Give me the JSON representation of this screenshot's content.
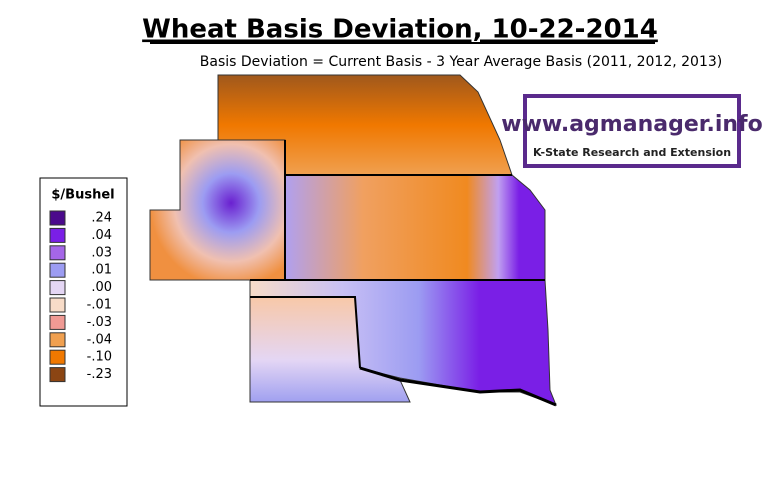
{
  "title": "Wheat Basis Deviation, 10-22-2014",
  "subtitle": "Basis Deviation = Current Basis - 3 Year Average Basis (2011, 2012, 2013)",
  "legend": {
    "title": "$/Bushel",
    "items": [
      {
        "label": ".24",
        "color": "#4b0a8c"
      },
      {
        "label": ".04",
        "color": "#7a1fe6"
      },
      {
        "label": ".03",
        "color": "#a566e8"
      },
      {
        "label": ".01",
        "color": "#9c9cf2"
      },
      {
        "label": ".00",
        "color": "#e4d6f4"
      },
      {
        "label": "-.01",
        "color": "#f8dcc8"
      },
      {
        "label": "-.03",
        "color": "#f09a94"
      },
      {
        "label": "-.04",
        "color": "#f0a050"
      },
      {
        "label": "-.10",
        "color": "#f07800"
      },
      {
        "label": "-.23",
        "color": "#8b4513"
      }
    ]
  },
  "logo": {
    "url": "www.agmanager.info",
    "org": "K-State Research and Extension"
  }
}
